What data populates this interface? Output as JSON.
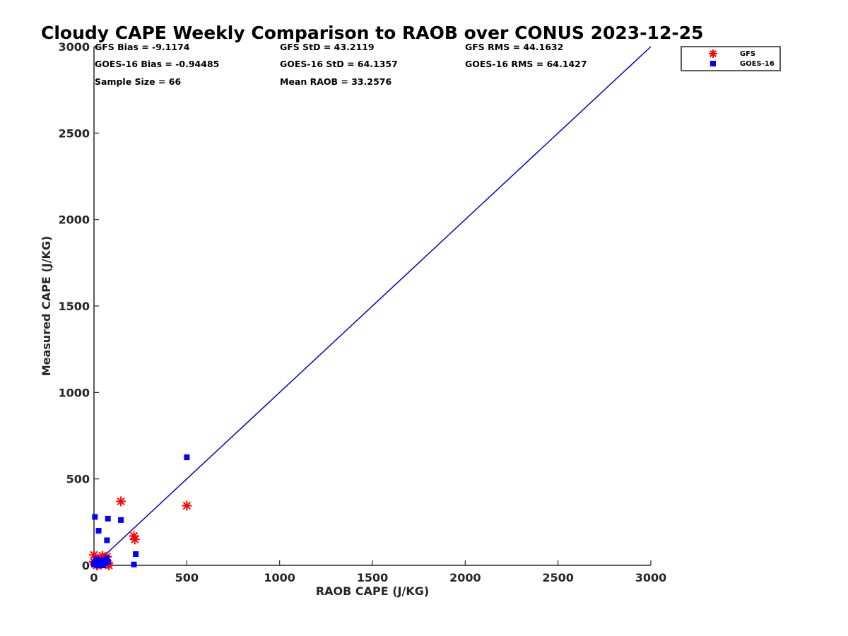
{
  "chart_data": {
    "type": "scatter",
    "title": "Cloudy CAPE Weekly Comparison to RAOB over CONUS 2023-12-25",
    "xlabel": "RAOB CAPE (J/KG)",
    "ylabel": "Measured CAPE (J/KG)",
    "xlim": [
      0,
      3000
    ],
    "ylim": [
      0,
      3000
    ],
    "xticks": [
      "0",
      "500",
      "1000",
      "1500",
      "2000",
      "2500",
      "3000"
    ],
    "yticks": [
      "0",
      "500",
      "1000",
      "1500",
      "2000",
      "2500",
      "3000"
    ],
    "grid": false,
    "legend_position": "top-right (outside plot)",
    "stats": [
      [
        "GFS Bias = -9.1174",
        "GFS StD = 43.2119",
        "GFS RMS = 44.1632"
      ],
      [
        "GOES-16 Bias = -0.94485",
        "GOES-16 StD = 64.1357",
        "GOES-16 RMS = 64.1427"
      ],
      [
        "Sample Size = 66",
        "Mean RAOB = 33.2576",
        ""
      ]
    ],
    "reference_line": {
      "x": [
        0,
        3000
      ],
      "y": [
        0,
        3000
      ],
      "color": "#0000cc"
    },
    "series": [
      {
        "name": "GFS",
        "marker": "asterisk",
        "color": "#ff0000",
        "points": [
          [
            145,
            370
          ],
          [
            500,
            345
          ],
          [
            215,
            170
          ],
          [
            220,
            150
          ],
          [
            45,
            55
          ],
          [
            0,
            60
          ],
          [
            70,
            50
          ],
          [
            10,
            30
          ],
          [
            25,
            20
          ],
          [
            5,
            10
          ],
          [
            40,
            5
          ],
          [
            60,
            15
          ],
          [
            80,
            0
          ],
          [
            15,
            0
          ],
          [
            30,
            10
          ],
          [
            50,
            25
          ],
          [
            0,
            20
          ],
          [
            75,
            10
          ],
          [
            35,
            35
          ],
          [
            20,
            5
          ]
        ]
      },
      {
        "name": "GOES-16",
        "marker": "square",
        "color": "#0000ff",
        "points": [
          [
            500,
            625
          ],
          [
            5,
            280
          ],
          [
            75,
            270
          ],
          [
            145,
            262
          ],
          [
            25,
            200
          ],
          [
            70,
            145
          ],
          [
            225,
            65
          ],
          [
            215,
            5
          ],
          [
            70,
            40
          ],
          [
            45,
            30
          ],
          [
            10,
            25
          ],
          [
            30,
            10
          ],
          [
            0,
            5
          ],
          [
            60,
            15
          ],
          [
            20,
            0
          ],
          [
            5,
            15
          ],
          [
            40,
            5
          ],
          [
            75,
            20
          ],
          [
            50,
            0
          ],
          [
            15,
            35
          ]
        ]
      }
    ]
  }
}
